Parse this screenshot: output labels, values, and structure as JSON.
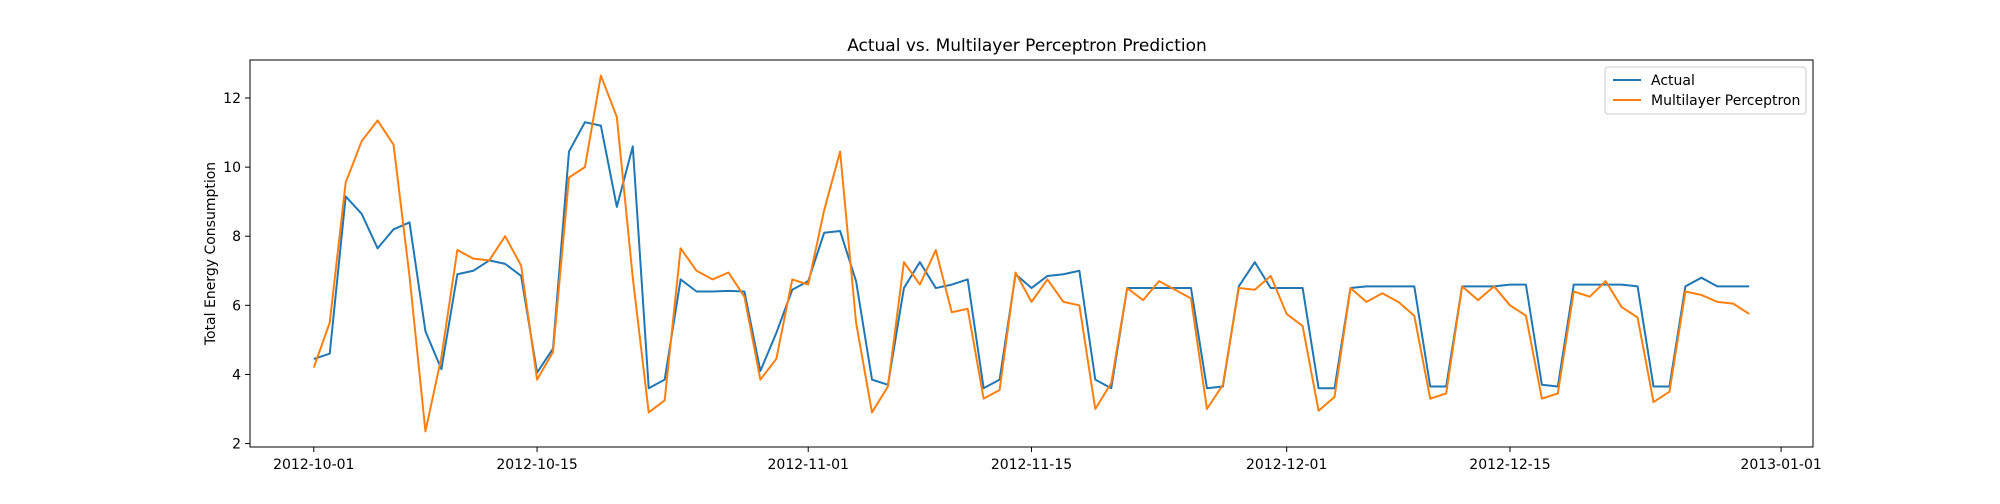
{
  "chart_data": {
    "type": "line",
    "title": "Actual vs. Multilayer Perceptron Prediction",
    "xlabel": "",
    "ylabel": "Total Energy Consumption",
    "x_axis_type": "date",
    "x_start_date": "2012-10-01",
    "x_end_date": "2012-12-31",
    "xlim": [
      "2012-09-27",
      "2013-01-03"
    ],
    "ylim": [
      1.9,
      13.1
    ],
    "x_ticks": [
      "2012-10-01",
      "2012-10-15",
      "2012-11-01",
      "2012-11-15",
      "2012-12-01",
      "2012-12-15",
      "2013-01-01"
    ],
    "y_ticks": [
      2,
      4,
      6,
      8,
      10,
      12
    ],
    "grid": false,
    "legend_position": "top-right",
    "series": [
      {
        "name": "Actual",
        "color": "#1f77b4",
        "values": [
          4.45,
          4.6,
          9.15,
          8.65,
          7.65,
          8.2,
          8.4,
          5.25,
          4.15,
          6.9,
          7.0,
          7.3,
          7.2,
          6.85,
          4.05,
          4.75,
          10.45,
          11.3,
          11.2,
          8.85,
          10.6,
          3.6,
          3.85,
          6.75,
          6.4,
          6.4,
          6.42,
          6.4,
          4.1,
          5.2,
          6.45,
          6.7,
          8.1,
          8.15,
          6.7,
          3.85,
          3.7,
          6.5,
          7.25,
          6.5,
          6.6,
          6.75,
          3.6,
          3.85,
          6.9,
          6.5,
          6.85,
          6.9,
          7.0,
          3.85,
          3.6,
          6.5,
          6.5,
          6.5,
          6.5,
          6.5,
          3.6,
          3.65,
          6.55,
          7.25,
          6.5,
          6.5,
          6.5,
          3.6,
          3.6,
          6.5,
          6.55,
          6.55,
          6.55,
          6.55,
          3.65,
          3.65,
          6.55,
          6.55,
          6.55,
          6.6,
          6.6,
          3.7,
          3.65,
          6.6,
          6.6,
          6.6,
          6.6,
          6.55,
          3.65,
          3.65,
          6.55,
          6.8,
          6.55,
          6.55,
          6.55
        ]
      },
      {
        "name": "Multilayer Perceptron",
        "color": "#ff7f0e",
        "values": [
          4.2,
          5.5,
          9.55,
          10.75,
          11.35,
          10.65,
          6.85,
          2.35,
          4.5,
          7.6,
          7.35,
          7.3,
          8.0,
          7.15,
          3.85,
          4.65,
          9.7,
          10.0,
          12.65,
          11.45,
          6.8,
          2.9,
          3.25,
          7.65,
          7.0,
          6.75,
          6.95,
          6.25,
          3.85,
          4.45,
          6.75,
          6.6,
          8.75,
          10.45,
          5.5,
          2.9,
          3.65,
          7.25,
          6.6,
          7.6,
          5.8,
          5.9,
          3.3,
          3.55,
          6.95,
          6.1,
          6.75,
          6.1,
          6.0,
          3.0,
          3.75,
          6.5,
          6.15,
          6.7,
          6.45,
          6.2,
          3.0,
          3.7,
          6.5,
          6.45,
          6.85,
          5.75,
          5.4,
          2.95,
          3.35,
          6.5,
          6.1,
          6.35,
          6.1,
          5.7,
          3.3,
          3.45,
          6.55,
          6.15,
          6.55,
          6.0,
          5.7,
          3.3,
          3.45,
          6.4,
          6.25,
          6.7,
          5.95,
          5.65,
          3.2,
          3.5,
          6.4,
          6.3,
          6.1,
          6.05,
          5.75
        ]
      }
    ]
  }
}
